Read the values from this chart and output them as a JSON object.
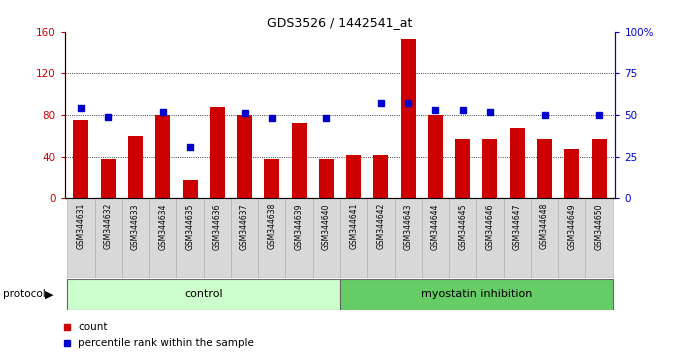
{
  "title": "GDS3526 / 1442541_at",
  "samples": [
    "GSM344631",
    "GSM344632",
    "GSM344633",
    "GSM344634",
    "GSM344635",
    "GSM344636",
    "GSM344637",
    "GSM344638",
    "GSM344639",
    "GSM344640",
    "GSM344641",
    "GSM344642",
    "GSM344643",
    "GSM344644",
    "GSM344645",
    "GSM344646",
    "GSM344647",
    "GSM344648",
    "GSM344649",
    "GSM344650"
  ],
  "bar_values": [
    75,
    38,
    60,
    80,
    18,
    88,
    80,
    38,
    72,
    38,
    42,
    42,
    153,
    80,
    57,
    57,
    68,
    57,
    47,
    57
  ],
  "percentile_ranks": [
    54,
    49,
    null,
    52,
    31,
    null,
    51,
    48,
    null,
    48,
    null,
    57,
    57,
    53,
    53,
    52,
    null,
    50,
    null,
    50
  ],
  "bar_color": "#cc0000",
  "dot_color": "#0000cc",
  "control_n": 10,
  "myostatin_n": 10,
  "control_color": "#ccffcc",
  "myostatin_color": "#66cc66",
  "group_label_control": "control",
  "group_label_myostatin": "myostatin inhibition",
  "protocol_label": "protocol",
  "ylim_left": [
    0,
    160
  ],
  "ylim_right": [
    0,
    100
  ],
  "yticks_left": [
    0,
    40,
    80,
    120,
    160
  ],
  "yticks_right": [
    0,
    25,
    50,
    75,
    100
  ],
  "yticklabels_right": [
    "0",
    "25",
    "50",
    "75",
    "100%"
  ],
  "grid_lines": [
    40,
    80,
    120
  ],
  "legend_count_label": "count",
  "legend_percentile_label": "percentile rank within the sample"
}
